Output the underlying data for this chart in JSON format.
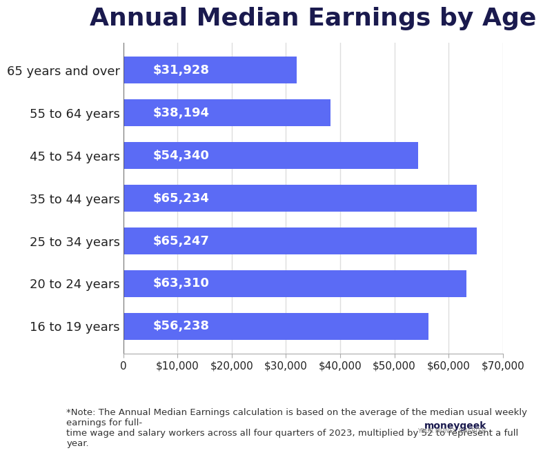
{
  "title": "Annual Median Earnings by Age",
  "categories": [
    "16 to 19 years",
    "20 to 24 years",
    "25 to 34 years",
    "35 to 44 years",
    "45 to 54 years",
    "55 to 64 years",
    "65 years and over"
  ],
  "values": [
    31928,
    38194,
    54340,
    65234,
    65247,
    63310,
    56238
  ],
  "labels": [
    "$31,928",
    "$38,194",
    "$54,340",
    "$65,234",
    "$65,247",
    "$63,310",
    "$56,238"
  ],
  "bar_color": "#5B6BF5",
  "bar_color2": "#6B7BFF",
  "text_color_label": "#FFFFFF",
  "title_color": "#1a1a4e",
  "axis_label_color": "#222222",
  "note_text": "*Note: The Annual Median Earnings calculation is based on the average of the median usual weekly earnings for full-\ntime wage and salary workers across all four quarters of 2023, multiplied by 52 to represent a full year.",
  "xlim": [
    0,
    70000
  ],
  "xticks": [
    0,
    10000,
    20000,
    30000,
    40000,
    50000,
    60000,
    70000
  ],
  "xtick_labels": [
    "0",
    "$10,000",
    "$20,000",
    "$30,000",
    "$40,000",
    "$50,000",
    "$60,000",
    "$70,000"
  ],
  "background_color": "#ffffff",
  "grid_color": "#dddddd",
  "title_fontsize": 26,
  "label_fontsize": 13,
  "tick_fontsize": 11,
  "note_fontsize": 9.5,
  "bar_height": 0.62
}
